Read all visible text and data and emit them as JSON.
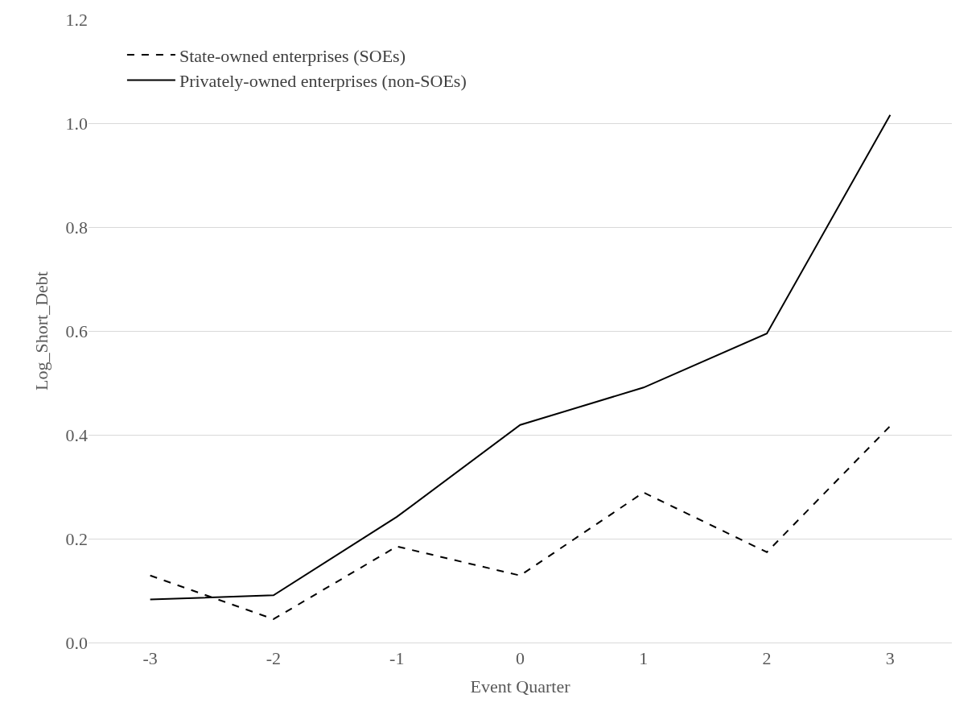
{
  "chart_data": {
    "type": "line",
    "xlabel": "Event Quarter",
    "ylabel": "Log_Short_Debt",
    "categories": [
      "-3",
      "-2",
      "-1",
      "0",
      "1",
      "2",
      "3"
    ],
    "series": [
      {
        "name": "State-owned enterprises (SOEs)",
        "color": "#000000",
        "line_style": "dashed",
        "values": [
          0.129,
          0.045,
          0.185,
          0.129,
          0.289,
          0.174,
          0.417
        ]
      },
      {
        "name": "Privately-owned enterprises (non-SOEs)",
        "color": "#000000",
        "line_style": "solid",
        "values": [
          0.083,
          0.091,
          0.242,
          0.419,
          0.491,
          0.595,
          1.016
        ]
      }
    ],
    "ylim": [
      0,
      1.2
    ],
    "yticks": [
      {
        "value": 0,
        "label": "0.0"
      },
      {
        "value": 0.2,
        "label": "0.2"
      },
      {
        "value": 0.4,
        "label": "0.4"
      },
      {
        "value": 0.6,
        "label": "0.6"
      },
      {
        "value": 0.8,
        "label": "0.8"
      },
      {
        "value": 1.0,
        "label": "1.0"
      },
      {
        "value": 1.2,
        "label": "1.2"
      }
    ],
    "grid": "y",
    "legend": "top left",
    "marker": "none"
  }
}
